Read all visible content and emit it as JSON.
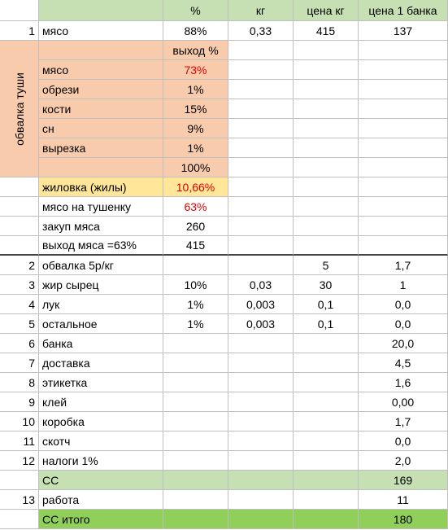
{
  "header": {
    "pct": "%",
    "kg": "кг",
    "price_kg": "цена кг",
    "price_can": "цена 1 банка"
  },
  "row1": {
    "num": "1",
    "name": "мясо",
    "pct": "88%",
    "kg": "0,33",
    "price_kg": "415",
    "price_can": "137"
  },
  "carcass_label": "обвалка туши",
  "yield_header": "выход %",
  "carcass_items": [
    {
      "name": "мясо",
      "pct": "73%",
      "red": true
    },
    {
      "name": "обрези",
      "pct": "1%",
      "red": false
    },
    {
      "name": "кости",
      "pct": "15%",
      "red": false
    },
    {
      "name": "сн",
      "pct": "9%",
      "red": false
    },
    {
      "name": "вырезка",
      "pct": "1%",
      "red": false
    }
  ],
  "carcass_total": "100%",
  "sinew": {
    "name": "жиловка (жилы)",
    "pct": "10,66%"
  },
  "stew_meat": {
    "name": "мясо на тушенку",
    "pct": "63%"
  },
  "purchase": {
    "name": "закуп мяса",
    "value": "260"
  },
  "meat_yield": {
    "name": "выход мяса =63%",
    "value": "415"
  },
  "items": [
    {
      "num": "2",
      "name": "обвалка 5р/кг",
      "pct": "",
      "kg": "",
      "price_kg": "5",
      "price_can": "1,7"
    },
    {
      "num": "3",
      "name": "жир сырец",
      "pct": "10%",
      "kg": "0,03",
      "price_kg": "30",
      "price_can": "1"
    },
    {
      "num": "4",
      "name": "лук",
      "pct": "1%",
      "kg": "0,003",
      "price_kg": "0,1",
      "price_can": "0,0"
    },
    {
      "num": "5",
      "name": "остальное",
      "pct": "1%",
      "kg": "0,003",
      "price_kg": "0,1",
      "price_can": "0,0"
    },
    {
      "num": "6",
      "name": "банка",
      "pct": "",
      "kg": "",
      "price_kg": "",
      "price_can": "20,0"
    },
    {
      "num": "7",
      "name": "доставка",
      "pct": "",
      "kg": "",
      "price_kg": "",
      "price_can": "4,5"
    },
    {
      "num": "8",
      "name": "этикетка",
      "pct": "",
      "kg": "",
      "price_kg": "",
      "price_can": "1,6"
    },
    {
      "num": "9",
      "name": "клей",
      "pct": "",
      "kg": "",
      "price_kg": "",
      "price_can": "0,00"
    },
    {
      "num": "10",
      "name": "коробка",
      "pct": "",
      "kg": "",
      "price_kg": "",
      "price_can": "1,7"
    },
    {
      "num": "11",
      "name": "скотч",
      "pct": "",
      "kg": "",
      "price_kg": "",
      "price_can": "0,0"
    },
    {
      "num": "12",
      "name": "налоги 1%",
      "pct": "",
      "kg": "",
      "price_kg": "",
      "price_can": "2,0"
    }
  ],
  "cost": {
    "name": "СС",
    "value": "169"
  },
  "labor": {
    "num": "13",
    "name": "работа",
    "value": "11"
  },
  "cost_total": {
    "name": "СС итого",
    "value": "180"
  }
}
